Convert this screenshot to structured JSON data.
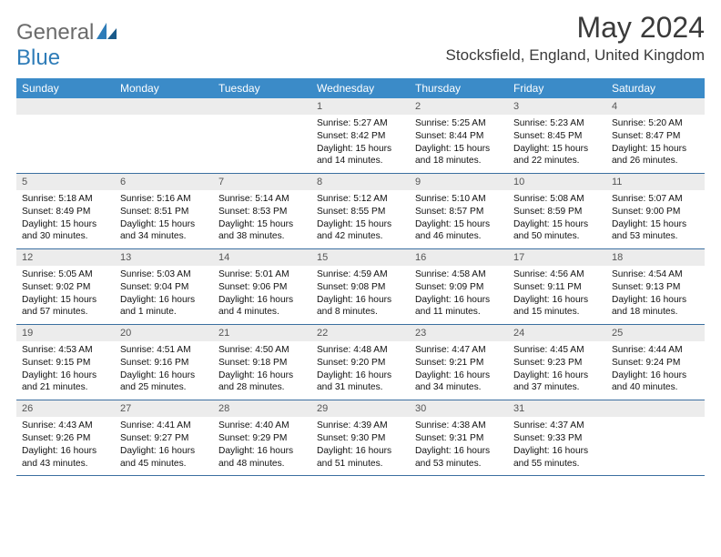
{
  "logo": {
    "general": "General",
    "blue": "Blue"
  },
  "title": "May 2024",
  "location": "Stocksfield, England, United Kingdom",
  "colors": {
    "header_bg": "#3b8bc8",
    "daynum_bg": "#ececec",
    "week_border": "#3b6fa0",
    "logo_general": "#6b6b6b",
    "logo_blue": "#2e7cb8"
  },
  "weekdays": [
    "Sunday",
    "Monday",
    "Tuesday",
    "Wednesday",
    "Thursday",
    "Friday",
    "Saturday"
  ],
  "weeks": [
    {
      "nums": [
        "",
        "",
        "",
        "1",
        "2",
        "3",
        "4"
      ],
      "cells": [
        "",
        "",
        "",
        "Sunrise: 5:27 AM\nSunset: 8:42 PM\nDaylight: 15 hours and 14 minutes.",
        "Sunrise: 5:25 AM\nSunset: 8:44 PM\nDaylight: 15 hours and 18 minutes.",
        "Sunrise: 5:23 AM\nSunset: 8:45 PM\nDaylight: 15 hours and 22 minutes.",
        "Sunrise: 5:20 AM\nSunset: 8:47 PM\nDaylight: 15 hours and 26 minutes."
      ]
    },
    {
      "nums": [
        "5",
        "6",
        "7",
        "8",
        "9",
        "10",
        "11"
      ],
      "cells": [
        "Sunrise: 5:18 AM\nSunset: 8:49 PM\nDaylight: 15 hours and 30 minutes.",
        "Sunrise: 5:16 AM\nSunset: 8:51 PM\nDaylight: 15 hours and 34 minutes.",
        "Sunrise: 5:14 AM\nSunset: 8:53 PM\nDaylight: 15 hours and 38 minutes.",
        "Sunrise: 5:12 AM\nSunset: 8:55 PM\nDaylight: 15 hours and 42 minutes.",
        "Sunrise: 5:10 AM\nSunset: 8:57 PM\nDaylight: 15 hours and 46 minutes.",
        "Sunrise: 5:08 AM\nSunset: 8:59 PM\nDaylight: 15 hours and 50 minutes.",
        "Sunrise: 5:07 AM\nSunset: 9:00 PM\nDaylight: 15 hours and 53 minutes."
      ]
    },
    {
      "nums": [
        "12",
        "13",
        "14",
        "15",
        "16",
        "17",
        "18"
      ],
      "cells": [
        "Sunrise: 5:05 AM\nSunset: 9:02 PM\nDaylight: 15 hours and 57 minutes.",
        "Sunrise: 5:03 AM\nSunset: 9:04 PM\nDaylight: 16 hours and 1 minute.",
        "Sunrise: 5:01 AM\nSunset: 9:06 PM\nDaylight: 16 hours and 4 minutes.",
        "Sunrise: 4:59 AM\nSunset: 9:08 PM\nDaylight: 16 hours and 8 minutes.",
        "Sunrise: 4:58 AM\nSunset: 9:09 PM\nDaylight: 16 hours and 11 minutes.",
        "Sunrise: 4:56 AM\nSunset: 9:11 PM\nDaylight: 16 hours and 15 minutes.",
        "Sunrise: 4:54 AM\nSunset: 9:13 PM\nDaylight: 16 hours and 18 minutes."
      ]
    },
    {
      "nums": [
        "19",
        "20",
        "21",
        "22",
        "23",
        "24",
        "25"
      ],
      "cells": [
        "Sunrise: 4:53 AM\nSunset: 9:15 PM\nDaylight: 16 hours and 21 minutes.",
        "Sunrise: 4:51 AM\nSunset: 9:16 PM\nDaylight: 16 hours and 25 minutes.",
        "Sunrise: 4:50 AM\nSunset: 9:18 PM\nDaylight: 16 hours and 28 minutes.",
        "Sunrise: 4:48 AM\nSunset: 9:20 PM\nDaylight: 16 hours and 31 minutes.",
        "Sunrise: 4:47 AM\nSunset: 9:21 PM\nDaylight: 16 hours and 34 minutes.",
        "Sunrise: 4:45 AM\nSunset: 9:23 PM\nDaylight: 16 hours and 37 minutes.",
        "Sunrise: 4:44 AM\nSunset: 9:24 PM\nDaylight: 16 hours and 40 minutes."
      ]
    },
    {
      "nums": [
        "26",
        "27",
        "28",
        "29",
        "30",
        "31",
        ""
      ],
      "cells": [
        "Sunrise: 4:43 AM\nSunset: 9:26 PM\nDaylight: 16 hours and 43 minutes.",
        "Sunrise: 4:41 AM\nSunset: 9:27 PM\nDaylight: 16 hours and 45 minutes.",
        "Sunrise: 4:40 AM\nSunset: 9:29 PM\nDaylight: 16 hours and 48 minutes.",
        "Sunrise: 4:39 AM\nSunset: 9:30 PM\nDaylight: 16 hours and 51 minutes.",
        "Sunrise: 4:38 AM\nSunset: 9:31 PM\nDaylight: 16 hours and 53 minutes.",
        "Sunrise: 4:37 AM\nSunset: 9:33 PM\nDaylight: 16 hours and 55 minutes.",
        ""
      ]
    }
  ]
}
